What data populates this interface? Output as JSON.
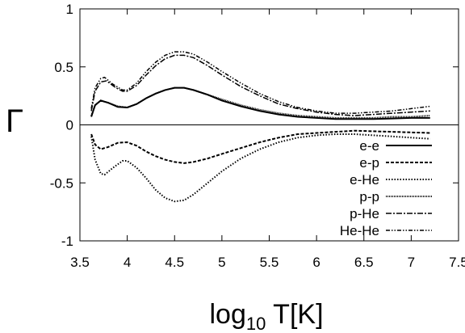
{
  "chart_data": {
    "type": "line",
    "xlabel_main": "log",
    "xlabel_sub": "10",
    "xlabel_rest": " T[K]",
    "ylabel": "Γ",
    "xlim": [
      3.5,
      7.5
    ],
    "ylim": [
      -1,
      1
    ],
    "xticks": [
      3.5,
      4,
      4.5,
      5,
      5.5,
      6,
      6.5,
      7,
      7.5
    ],
    "xtick_labels": [
      "3.5",
      "4",
      "4.5",
      "5",
      "5.5",
      "6",
      "6.5",
      "7",
      "7.5"
    ],
    "yticks": [
      -1,
      -0.5,
      0,
      0.5,
      1
    ],
    "ytick_labels": [
      "-1",
      "-0.5",
      "0",
      "0.5",
      "1"
    ],
    "grid": false,
    "legend_position": "lower-right",
    "series": [
      {
        "name": "e-e",
        "dash": "solid",
        "points": [
          [
            3.62,
            0.07
          ],
          [
            3.66,
            0.17
          ],
          [
            3.72,
            0.21
          ],
          [
            3.8,
            0.19
          ],
          [
            3.9,
            0.155
          ],
          [
            4.0,
            0.15
          ],
          [
            4.1,
            0.18
          ],
          [
            4.2,
            0.23
          ],
          [
            4.3,
            0.27
          ],
          [
            4.4,
            0.3
          ],
          [
            4.5,
            0.32
          ],
          [
            4.6,
            0.32
          ],
          [
            4.7,
            0.3
          ],
          [
            4.85,
            0.26
          ],
          [
            5.0,
            0.21
          ],
          [
            5.2,
            0.16
          ],
          [
            5.4,
            0.12
          ],
          [
            5.6,
            0.09
          ],
          [
            5.8,
            0.07
          ],
          [
            6.0,
            0.06
          ],
          [
            6.2,
            0.05
          ],
          [
            6.4,
            0.05
          ],
          [
            6.6,
            0.05
          ],
          [
            6.8,
            0.055
          ],
          [
            7.0,
            0.06
          ],
          [
            7.2,
            0.06
          ]
        ]
      },
      {
        "name": "e-p",
        "dash": "dashed",
        "points": [
          [
            3.62,
            -0.08
          ],
          [
            3.66,
            -0.17
          ],
          [
            3.72,
            -0.21
          ],
          [
            3.8,
            -0.19
          ],
          [
            3.9,
            -0.155
          ],
          [
            4.0,
            -0.15
          ],
          [
            4.1,
            -0.18
          ],
          [
            4.2,
            -0.23
          ],
          [
            4.3,
            -0.27
          ],
          [
            4.4,
            -0.3
          ],
          [
            4.5,
            -0.32
          ],
          [
            4.6,
            -0.33
          ],
          [
            4.7,
            -0.32
          ],
          [
            4.85,
            -0.29
          ],
          [
            5.0,
            -0.25
          ],
          [
            5.2,
            -0.2
          ],
          [
            5.4,
            -0.15
          ],
          [
            5.6,
            -0.11
          ],
          [
            5.8,
            -0.08
          ],
          [
            6.0,
            -0.07
          ],
          [
            6.2,
            -0.06
          ],
          [
            6.4,
            -0.05
          ],
          [
            6.6,
            -0.055
          ],
          [
            6.8,
            -0.06
          ],
          [
            7.0,
            -0.065
          ],
          [
            7.2,
            -0.07
          ]
        ]
      },
      {
        "name": "e-He",
        "dash": "dotted",
        "points": [
          [
            3.62,
            -0.1
          ],
          [
            3.66,
            -0.3
          ],
          [
            3.72,
            -0.42
          ],
          [
            3.76,
            -0.43
          ],
          [
            3.85,
            -0.37
          ],
          [
            3.95,
            -0.31
          ],
          [
            4.0,
            -0.31
          ],
          [
            4.1,
            -0.37
          ],
          [
            4.2,
            -0.46
          ],
          [
            4.3,
            -0.56
          ],
          [
            4.4,
            -0.63
          ],
          [
            4.5,
            -0.66
          ],
          [
            4.6,
            -0.65
          ],
          [
            4.7,
            -0.6
          ],
          [
            4.85,
            -0.5
          ],
          [
            5.0,
            -0.4
          ],
          [
            5.2,
            -0.29
          ],
          [
            5.4,
            -0.21
          ],
          [
            5.6,
            -0.15
          ],
          [
            5.8,
            -0.11
          ],
          [
            6.0,
            -0.09
          ],
          [
            6.2,
            -0.08
          ],
          [
            6.4,
            -0.08
          ],
          [
            6.6,
            -0.09
          ],
          [
            6.8,
            -0.1
          ],
          [
            7.0,
            -0.11
          ],
          [
            7.2,
            -0.12
          ]
        ]
      },
      {
        "name": "p-p",
        "dash": "fine-dotted",
        "points": [
          [
            3.62,
            0.08
          ],
          [
            3.66,
            0.17
          ],
          [
            3.72,
            0.21
          ],
          [
            3.8,
            0.19
          ],
          [
            3.9,
            0.16
          ],
          [
            4.0,
            0.15
          ],
          [
            4.1,
            0.18
          ],
          [
            4.2,
            0.23
          ],
          [
            4.3,
            0.27
          ],
          [
            4.4,
            0.3
          ],
          [
            4.5,
            0.32
          ],
          [
            4.6,
            0.32
          ],
          [
            4.7,
            0.3
          ],
          [
            4.85,
            0.26
          ],
          [
            5.0,
            0.22
          ],
          [
            5.2,
            0.17
          ],
          [
            5.4,
            0.13
          ],
          [
            5.6,
            0.1
          ],
          [
            5.8,
            0.08
          ],
          [
            6.0,
            0.07
          ],
          [
            6.2,
            0.06
          ],
          [
            6.4,
            0.06
          ],
          [
            6.6,
            0.06
          ],
          [
            6.8,
            0.07
          ],
          [
            7.0,
            0.07
          ],
          [
            7.2,
            0.08
          ]
        ]
      },
      {
        "name": "p-He",
        "dash": "dash-dot",
        "points": [
          [
            3.62,
            0.12
          ],
          [
            3.66,
            0.29
          ],
          [
            3.72,
            0.37
          ],
          [
            3.78,
            0.38
          ],
          [
            3.88,
            0.32
          ],
          [
            3.95,
            0.29
          ],
          [
            4.0,
            0.29
          ],
          [
            4.1,
            0.34
          ],
          [
            4.2,
            0.43
          ],
          [
            4.3,
            0.51
          ],
          [
            4.4,
            0.57
          ],
          [
            4.5,
            0.6
          ],
          [
            4.6,
            0.6
          ],
          [
            4.7,
            0.58
          ],
          [
            4.85,
            0.51
          ],
          [
            5.0,
            0.43
          ],
          [
            5.2,
            0.33
          ],
          [
            5.4,
            0.25
          ],
          [
            5.6,
            0.18
          ],
          [
            5.8,
            0.14
          ],
          [
            6.0,
            0.11
          ],
          [
            6.2,
            0.09
          ],
          [
            6.4,
            0.08
          ],
          [
            6.6,
            0.09
          ],
          [
            6.8,
            0.1
          ],
          [
            7.0,
            0.11
          ],
          [
            7.2,
            0.12
          ]
        ]
      },
      {
        "name": "He-He",
        "dash": "dash-dot-dot",
        "points": [
          [
            3.62,
            0.14
          ],
          [
            3.66,
            0.32
          ],
          [
            3.72,
            0.4
          ],
          [
            3.76,
            0.41
          ],
          [
            3.85,
            0.35
          ],
          [
            3.95,
            0.3
          ],
          [
            4.0,
            0.3
          ],
          [
            4.1,
            0.36
          ],
          [
            4.2,
            0.46
          ],
          [
            4.3,
            0.54
          ],
          [
            4.4,
            0.6
          ],
          [
            4.5,
            0.63
          ],
          [
            4.6,
            0.63
          ],
          [
            4.7,
            0.61
          ],
          [
            4.85,
            0.54
          ],
          [
            5.0,
            0.46
          ],
          [
            5.2,
            0.36
          ],
          [
            5.4,
            0.27
          ],
          [
            5.6,
            0.2
          ],
          [
            5.8,
            0.15
          ],
          [
            6.0,
            0.12
          ],
          [
            6.2,
            0.1
          ],
          [
            6.4,
            0.1
          ],
          [
            6.6,
            0.11
          ],
          [
            6.8,
            0.12
          ],
          [
            7.0,
            0.14
          ],
          [
            7.2,
            0.16
          ]
        ]
      }
    ]
  }
}
